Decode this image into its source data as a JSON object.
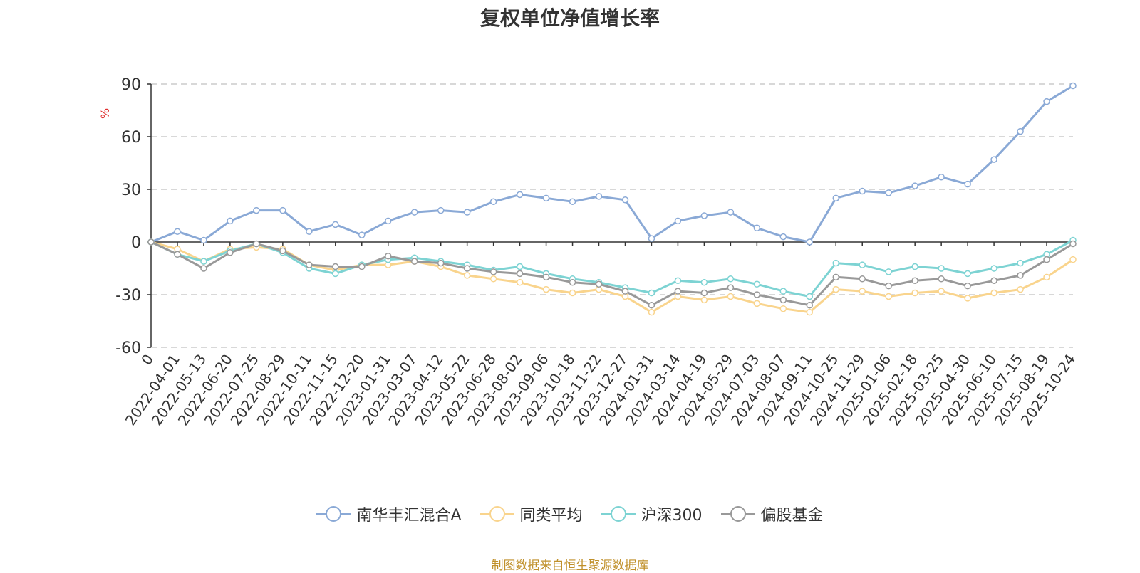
{
  "chart_data": {
    "type": "line",
    "title": "复权单位净值增长率",
    "ylabel": "%",
    "xlabel": "",
    "ylim": [
      -60,
      90
    ],
    "yticks": [
      "90",
      "60",
      "30",
      "0",
      "-30",
      "-60"
    ],
    "grid": true,
    "legend_position": "bottom",
    "x": [
      "0",
      "2022-04-01",
      "2022-05-13",
      "2022-06-20",
      "2022-07-25",
      "2022-08-29",
      "2022-10-11",
      "2022-11-15",
      "2022-12-20",
      "2023-01-31",
      "2023-03-07",
      "2023-04-12",
      "2023-05-22",
      "2023-06-28",
      "2023-08-02",
      "2023-09-06",
      "2023-10-18",
      "2023-11-22",
      "2023-12-27",
      "2024-01-31",
      "2024-03-14",
      "2024-04-19",
      "2024-05-29",
      "2024-07-03",
      "2024-08-07",
      "2024-09-11",
      "2024-10-25",
      "2024-11-29",
      "2025-01-06",
      "2025-02-18",
      "2025-03-25",
      "2025-04-30",
      "2025-06-10",
      "2025-07-15",
      "2025-08-19",
      "2025-10-24"
    ],
    "series": [
      {
        "name": "南华丰汇混合A",
        "color": "#8aa9d6",
        "values": [
          0,
          6,
          1,
          12,
          18,
          18,
          6,
          10,
          4,
          12,
          17,
          18,
          17,
          23,
          27,
          25,
          23,
          26,
          24,
          2,
          12,
          15,
          17,
          8,
          3,
          0,
          25,
          29,
          28,
          32,
          37,
          33,
          47,
          63,
          80,
          89
        ]
      },
      {
        "name": "同类平均",
        "color": "#f9d48d",
        "values": [
          0,
          -4,
          -11,
          -4,
          -3,
          -4,
          -13,
          -16,
          -13,
          -13,
          -11,
          -14,
          -19,
          -21,
          -23,
          -27,
          -29,
          -27,
          -31,
          -40,
          -31,
          -33,
          -31,
          -35,
          -38,
          -40,
          -27,
          -28,
          -31,
          -29,
          -28,
          -32,
          -29,
          -27,
          -20,
          -10
        ]
      },
      {
        "name": "沪深300",
        "color": "#7dd3d3",
        "values": [
          0,
          -7,
          -11,
          -5,
          -1,
          -6,
          -15,
          -18,
          -13,
          -10,
          -9,
          -11,
          -13,
          -16,
          -14,
          -18,
          -21,
          -23,
          -26,
          -29,
          -22,
          -23,
          -21,
          -24,
          -28,
          -31,
          -12,
          -13,
          -17,
          -14,
          -15,
          -18,
          -15,
          -12,
          -7,
          1
        ]
      },
      {
        "name": "偏股基金",
        "color": "#999999",
        "values": [
          0,
          -7,
          -15,
          -6,
          -1,
          -5,
          -13,
          -14,
          -14,
          -8,
          -11,
          -12,
          -15,
          -17,
          -18,
          -20,
          -23,
          -24,
          -28,
          -36,
          -28,
          -29,
          -26,
          -30,
          -33,
          -36,
          -20,
          -21,
          -25,
          -22,
          -21,
          -25,
          -22,
          -19,
          -10,
          -1
        ]
      }
    ]
  },
  "source_note": "制图数据来自恒生聚源数据库"
}
